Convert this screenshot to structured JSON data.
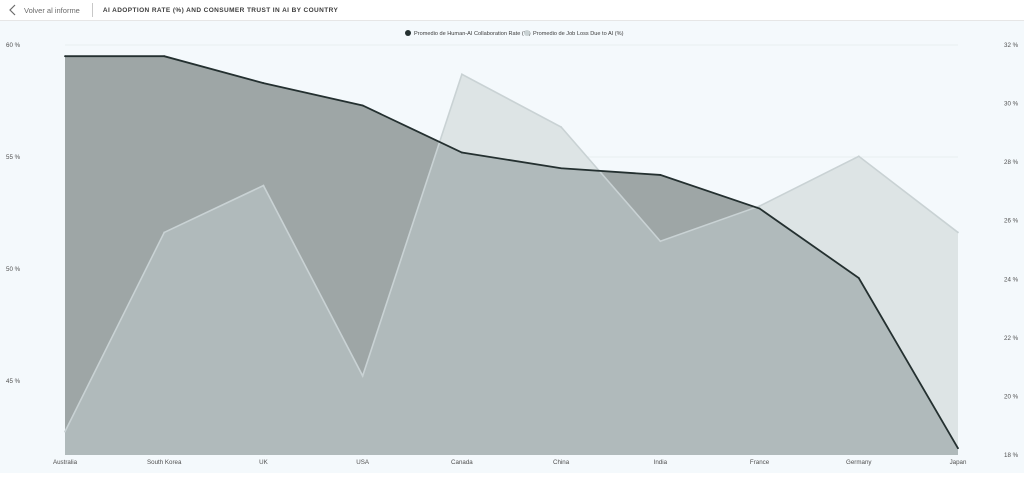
{
  "header": {
    "back_label": "Volver al informe",
    "title": "AI ADOPTION RATE (%) AND CONSUMER TRUST IN AI BY COUNTRY"
  },
  "colors": {
    "series1_line": "#243030",
    "series1_fill": "#9ea6a6",
    "series2_line": "#c9d2d4",
    "series2_fill": "#dde4e5",
    "overlap_fill": "#b0babb",
    "background": "#f4f9fc",
    "text": "#505050"
  },
  "chart_data": {
    "type": "area",
    "categories": [
      "Australia",
      "South Korea",
      "UK",
      "USA",
      "Canada",
      "China",
      "India",
      "France",
      "Germany",
      "Japan"
    ],
    "series": [
      {
        "name": "Promedio de Human-AI Collaboration Rate (%)",
        "axis": "left",
        "values": [
          59.5,
          59.5,
          58.3,
          57.3,
          55.2,
          54.5,
          54.2,
          52.7,
          49.6,
          42.0
        ]
      },
      {
        "name": "Promedio de Job Loss Due to AI (%)",
        "axis": "right",
        "values": [
          18.8,
          25.6,
          27.2,
          20.7,
          31.0,
          29.2,
          25.3,
          26.5,
          28.2,
          25.6
        ]
      }
    ],
    "y_left": {
      "min": 41.7,
      "max": 60.0,
      "ticks": [
        60,
        55,
        50,
        45
      ],
      "tick_labels": [
        "60 %",
        "55 %",
        "50 %",
        "45 %"
      ]
    },
    "y_right": {
      "min": 18.0,
      "max": 32.0,
      "ticks": [
        32,
        30,
        28,
        26,
        24,
        22,
        20,
        18
      ],
      "tick_labels": [
        "32 %",
        "30 %",
        "28 %",
        "26 %",
        "24 %",
        "22 %",
        "20 %",
        "18 %"
      ]
    },
    "legend": "top-center",
    "grid": true
  }
}
